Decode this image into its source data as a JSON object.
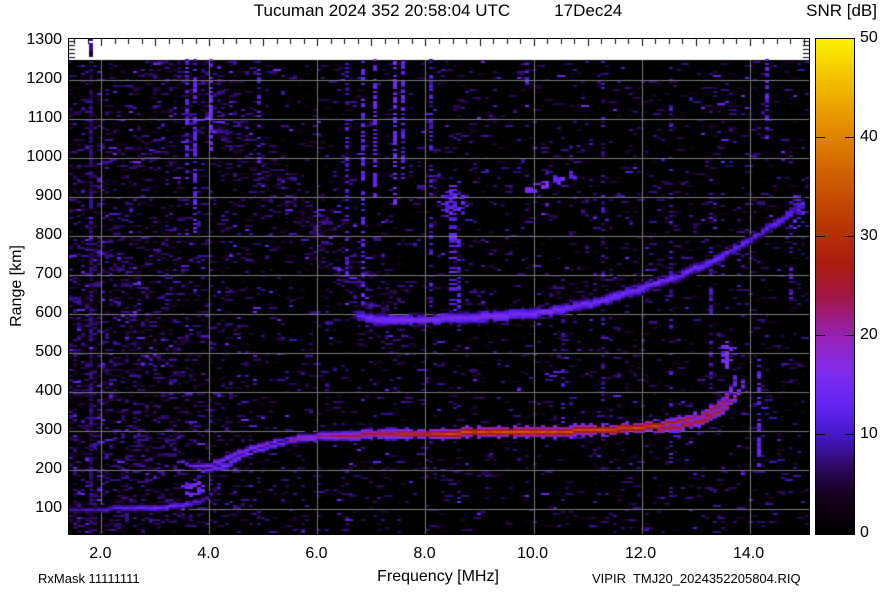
{
  "header": {
    "title": "Tucuman 2024 352 20:58:04 UTC",
    "date_label": "17Dec24",
    "colorbar_title": "SNR [dB]"
  },
  "footer": {
    "left": "RxMask 11111111",
    "right": "VIPIR  TMJ20_2024352205804.RIQ"
  },
  "chart_data": {
    "type": "heatmap",
    "subtype": "ionogram",
    "title": "Tucuman 2024 352 20:58:04 UTC   17Dec24",
    "xlabel": "Frequency [MHz]",
    "ylabel": "Range [km]",
    "xlim": [
      1.4,
      15.1
    ],
    "ylim": [
      35,
      1305
    ],
    "data_top_km": 1250,
    "xtick_values": [
      2,
      4,
      6,
      8,
      10,
      12,
      14
    ],
    "xtick_labels": [
      "2.0",
      "4.0",
      "6.0",
      "8.0",
      "10.0",
      "12.0",
      "14.0"
    ],
    "ytick_values": [
      100,
      200,
      300,
      400,
      500,
      600,
      700,
      800,
      900,
      1000,
      1100,
      1200,
      1300
    ],
    "ytick_labels": [
      "100",
      "200",
      "300",
      "400",
      "500",
      "600",
      "700",
      "800",
      "900",
      "1000",
      "1100",
      "1200",
      "1300"
    ],
    "grid": true,
    "colors": {
      "background": "#000000",
      "page": "#ffffff",
      "gridline": "#787878",
      "frame": "#000000"
    },
    "colorbar": {
      "min": 0,
      "max": 50,
      "tick_values": [
        0,
        10,
        20,
        30,
        40,
        50
      ],
      "tick_labels": [
        "0",
        "10",
        "20",
        "30",
        "40",
        "50"
      ],
      "inner_tick_values": [
        10,
        20,
        30,
        40
      ],
      "stops": [
        {
          "v": 0,
          "c": "#000000"
        },
        {
          "v": 4,
          "c": "#17001e"
        },
        {
          "v": 7,
          "c": "#2f0a68"
        },
        {
          "v": 10,
          "c": "#4517c9"
        },
        {
          "v": 13,
          "c": "#6324f2"
        },
        {
          "v": 16,
          "c": "#7d2cf0"
        },
        {
          "v": 19,
          "c": "#9124c4"
        },
        {
          "v": 21,
          "c": "#9a1f9a"
        },
        {
          "v": 24,
          "c": "#a11646"
        },
        {
          "v": 27,
          "c": "#aa1a12"
        },
        {
          "v": 31,
          "c": "#b83404"
        },
        {
          "v": 36,
          "c": "#cf5d02"
        },
        {
          "v": 41,
          "c": "#e38b00"
        },
        {
          "v": 46,
          "c": "#f3c100"
        },
        {
          "v": 50,
          "c": "#fdf300"
        }
      ]
    },
    "noise": {
      "base_p": 0.075,
      "snr0": 3,
      "snr1": 9,
      "left_f": 5.2,
      "left_p": 0.34,
      "band": {
        "f0": 3.0,
        "km0": 1270,
        "f1": 7.3,
        "km1": 600,
        "half": 130,
        "p": 0.3
      }
    },
    "rfi_stripes": [
      {
        "f": 1.78,
        "km0": 35,
        "km1": 1305,
        "p": 0.8,
        "snr": 6,
        "w": 1,
        "full": true
      },
      {
        "f": 3.55,
        "km0": 950,
        "km1": 1250,
        "p": 0.45,
        "snr": 11,
        "w": 1
      },
      {
        "f": 3.75,
        "km0": 800,
        "km1": 1250,
        "p": 0.5,
        "snr": 12,
        "w": 1
      },
      {
        "f": 4.05,
        "km0": 1020,
        "km1": 1250,
        "p": 0.55,
        "snr": 13,
        "w": 1
      },
      {
        "f": 4.95,
        "km0": 980,
        "km1": 1250,
        "p": 0.4,
        "snr": 11,
        "w": 1
      },
      {
        "f": 6.55,
        "km0": 700,
        "km1": 1250,
        "p": 0.35,
        "snr": 10,
        "w": 1
      },
      {
        "f": 6.85,
        "km0": 620,
        "km1": 1250,
        "p": 0.5,
        "snr": 12,
        "w": 1
      },
      {
        "f": 7.05,
        "km0": 900,
        "km1": 1250,
        "p": 0.55,
        "snr": 13,
        "w": 1
      },
      {
        "f": 7.45,
        "km0": 880,
        "km1": 1250,
        "p": 0.6,
        "snr": 14,
        "w": 1
      },
      {
        "f": 7.62,
        "km0": 950,
        "km1": 1250,
        "p": 0.45,
        "snr": 12,
        "w": 1
      },
      {
        "f": 8.1,
        "km0": 600,
        "km1": 1250,
        "p": 0.35,
        "snr": 10,
        "w": 1
      },
      {
        "f": 8.45,
        "km0": 600,
        "km1": 950,
        "p": 0.45,
        "snr": 12,
        "w": 2
      },
      {
        "f": 8.6,
        "km0": 600,
        "km1": 800,
        "p": 0.4,
        "snr": 11,
        "w": 1
      },
      {
        "f": 9.85,
        "km0": 1100,
        "km1": 1250,
        "p": 0.4,
        "snr": 11,
        "w": 1
      },
      {
        "f": 10.55,
        "km0": 320,
        "km1": 680,
        "p": 0.3,
        "snr": 9,
        "w": 1
      },
      {
        "f": 11.25,
        "km0": 200,
        "km1": 1250,
        "p": 0.22,
        "snr": 8,
        "w": 1
      },
      {
        "f": 12.55,
        "km0": 120,
        "km1": 1250,
        "p": 0.28,
        "snr": 9,
        "w": 1
      },
      {
        "f": 13.3,
        "km0": 350,
        "km1": 950,
        "p": 0.25,
        "snr": 9,
        "w": 1
      },
      {
        "f": 13.55,
        "km0": 455,
        "km1": 530,
        "p": 0.7,
        "snr": 15,
        "w": 1
      },
      {
        "f": 14.2,
        "km0": 210,
        "km1": 480,
        "p": 0.5,
        "snr": 12,
        "w": 1
      },
      {
        "f": 14.3,
        "km0": 1040,
        "km1": 1250,
        "p": 0.5,
        "snr": 12,
        "w": 1
      },
      {
        "f": 14.75,
        "km0": 620,
        "km1": 900,
        "p": 0.3,
        "snr": 10,
        "w": 1
      }
    ],
    "traces": [
      {
        "name": "F-trace O-mode",
        "points": [
          {
            "f": 3.45,
            "km": 222,
            "snr": 12
          },
          {
            "f": 3.7,
            "km": 208,
            "snr": 14
          },
          {
            "f": 3.95,
            "km": 207,
            "snr": 16
          },
          {
            "f": 4.2,
            "km": 221,
            "snr": 17
          },
          {
            "f": 4.55,
            "km": 243,
            "snr": 17
          },
          {
            "f": 4.9,
            "km": 260,
            "snr": 18
          },
          {
            "f": 5.3,
            "km": 272,
            "snr": 19
          },
          {
            "f": 5.8,
            "km": 281,
            "snr": 21
          },
          {
            "f": 6.3,
            "km": 287,
            "snr": 24
          },
          {
            "f": 7.0,
            "km": 290,
            "snr": 27
          },
          {
            "f": 7.8,
            "km": 292,
            "snr": 30
          },
          {
            "f": 8.6,
            "km": 294,
            "snr": 33
          },
          {
            "f": 9.5,
            "km": 296,
            "snr": 34
          },
          {
            "f": 10.5,
            "km": 298,
            "snr": 34
          },
          {
            "f": 11.3,
            "km": 302,
            "snr": 34
          },
          {
            "f": 12.0,
            "km": 308,
            "snr": 33
          },
          {
            "f": 12.5,
            "km": 316,
            "snr": 32
          },
          {
            "f": 12.9,
            "km": 327,
            "snr": 31
          },
          {
            "f": 13.25,
            "km": 345,
            "snr": 30
          },
          {
            "f": 13.5,
            "km": 372,
            "snr": 27
          },
          {
            "f": 13.65,
            "km": 405,
            "snr": 22
          },
          {
            "f": 13.75,
            "km": 435,
            "snr": 16
          },
          {
            "f": 13.82,
            "km": 458,
            "snr": 12
          }
        ],
        "fringe": [
          [
            1,
            -7,
            1
          ],
          [
            2,
            -14,
            0.85
          ],
          [
            3,
            -19,
            0.3
          ]
        ]
      },
      {
        "name": "F-trace X-mode rise",
        "points": [
          {
            "f": 12.3,
            "km": 302,
            "snr": 27
          },
          {
            "f": 12.8,
            "km": 312,
            "snr": 28
          },
          {
            "f": 13.2,
            "km": 328,
            "snr": 28
          },
          {
            "f": 13.5,
            "km": 352,
            "snr": 27
          },
          {
            "f": 13.72,
            "km": 385,
            "snr": 24
          },
          {
            "f": 13.85,
            "km": 415,
            "snr": 18
          },
          {
            "f": 13.95,
            "km": 440,
            "snr": 13
          }
        ],
        "fringe": [
          [
            1,
            -7,
            1
          ],
          [
            2,
            -14,
            0.6
          ]
        ]
      },
      {
        "name": "cusp lower strand",
        "points": [
          {
            "f": 3.9,
            "km": 196,
            "snr": 13
          },
          {
            "f": 4.3,
            "km": 212,
            "snr": 15
          },
          {
            "f": 4.7,
            "km": 238,
            "snr": 15
          },
          {
            "f": 5.1,
            "km": 258,
            "snr": 14
          },
          {
            "f": 5.5,
            "km": 272,
            "snr": 13
          }
        ],
        "fringe": [
          [
            1,
            -5,
            0.9
          ]
        ]
      },
      {
        "name": "Es layer 100 km",
        "points": [
          {
            "f": 1.45,
            "km": 97,
            "snr": 9
          },
          {
            "f": 2.1,
            "km": 99,
            "snr": 11
          },
          {
            "f": 2.7,
            "km": 101,
            "snr": 13
          },
          {
            "f": 3.2,
            "km": 104,
            "snr": 14
          },
          {
            "f": 3.55,
            "km": 109,
            "snr": 13
          },
          {
            "f": 3.8,
            "km": 118,
            "snr": 11
          },
          {
            "f": 4.0,
            "km": 133,
            "snr": 9
          },
          {
            "f": 4.25,
            "km": 158,
            "snr": 8
          }
        ],
        "fringe": [
          [
            1,
            -4,
            1
          ],
          [
            2,
            -9,
            0.5
          ]
        ]
      },
      {
        "name": "second-hop trace 600 km",
        "points": [
          {
            "f": 6.75,
            "km": 594,
            "snr": 14
          },
          {
            "f": 7.1,
            "km": 586,
            "snr": 16
          },
          {
            "f": 7.7,
            "km": 584,
            "snr": 16
          },
          {
            "f": 8.4,
            "km": 587,
            "snr": 16
          },
          {
            "f": 9.1,
            "km": 592,
            "snr": 17
          },
          {
            "f": 9.8,
            "km": 599,
            "snr": 16
          },
          {
            "f": 10.4,
            "km": 608,
            "snr": 16
          },
          {
            "f": 11.0,
            "km": 625,
            "snr": 15
          },
          {
            "f": 11.6,
            "km": 648,
            "snr": 15
          },
          {
            "f": 12.2,
            "km": 675,
            "snr": 15
          },
          {
            "f": 12.8,
            "km": 704,
            "snr": 14
          },
          {
            "f": 13.4,
            "km": 740,
            "snr": 14
          },
          {
            "f": 14.0,
            "km": 788,
            "snr": 13
          },
          {
            "f": 14.6,
            "km": 842,
            "snr": 13
          },
          {
            "f": 15.05,
            "km": 888,
            "snr": 12
          }
        ],
        "fringe": [
          [
            1,
            -3,
            1
          ],
          [
            2,
            -6,
            0.9
          ],
          [
            3,
            -10,
            0.55
          ],
          [
            4,
            -13,
            0.3
          ]
        ],
        "spread": {
          "f0": 10.3,
          "p": 0.4,
          "cells": 12
        }
      }
    ],
    "patches": [
      {
        "f": 8.5,
        "km": 880,
        "rf": 0.28,
        "rkm": 35,
        "n": 80,
        "snr": 12
      },
      {
        "f": 9.95,
        "km": 918,
        "rf": 0.1,
        "rkm": 10,
        "n": 25,
        "snr": 16
      },
      {
        "f": 10.2,
        "km": 930,
        "rf": 0.1,
        "rkm": 10,
        "n": 25,
        "snr": 15
      },
      {
        "f": 10.45,
        "km": 942,
        "rf": 0.12,
        "rkm": 10,
        "n": 22,
        "snr": 14
      },
      {
        "f": 10.75,
        "km": 955,
        "rf": 0.1,
        "rkm": 8,
        "n": 15,
        "snr": 12
      },
      {
        "f": 3.7,
        "km": 150,
        "rf": 0.18,
        "rkm": 25,
        "n": 50,
        "snr": 14
      },
      {
        "f": 13.6,
        "km": 490,
        "rf": 0.15,
        "rkm": 35,
        "n": 35,
        "snr": 14
      },
      {
        "f": 14.85,
        "km": 860,
        "rf": 0.15,
        "rkm": 45,
        "n": 40,
        "snr": 11
      }
    ]
  }
}
